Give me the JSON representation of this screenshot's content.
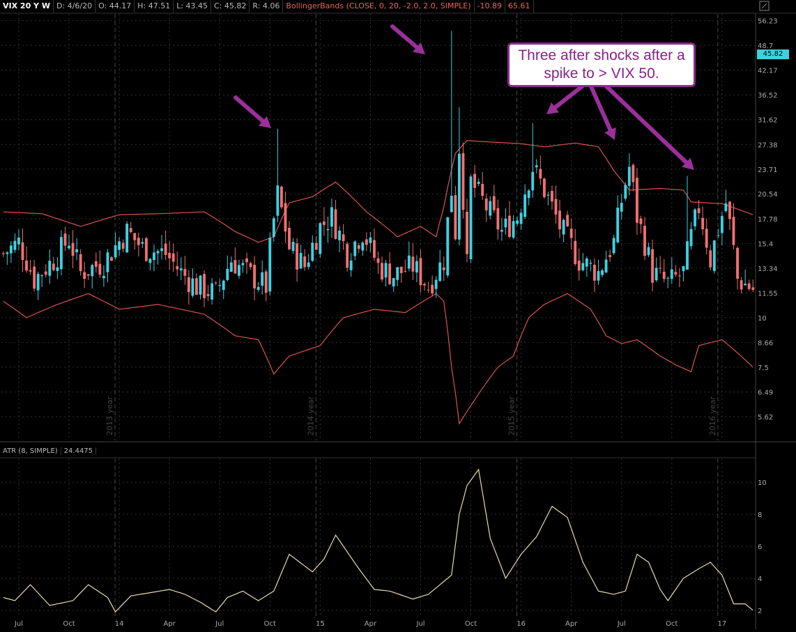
{
  "header": {
    "symbol": "VIX 20 Y W",
    "date": "D: 4/6/20",
    "open": "O: 44.17",
    "high": "H: 47.51",
    "low": "L: 43.45",
    "close": "C: 45.82",
    "range": "R: 4.06",
    "study": "BollingerBands (CLOSE, 0, 20, -2.0, 2.0, SIMPLE)",
    "study_lower": "-10.89",
    "study_upper": "65.61"
  },
  "price_tag": "45.82",
  "annotation": "Three after shocks after a spike to > VIX 50.",
  "atr_header": {
    "study": "ATR (8, SIMPLE)",
    "value": "24.4475"
  },
  "colors": {
    "up": "#3fd0e0",
    "down": "#f07070",
    "band": "#d9534f",
    "atr_line": "#e9dcae",
    "arrow": "#9b2f9b",
    "grid": "#333333"
  },
  "chart_data": [
    {
      "type": "candlestick",
      "scale": "log",
      "y_ticks": [
        56.23,
        48.7,
        42.17,
        36.52,
        31.62,
        27.38,
        23.71,
        20.54,
        17.78,
        15.4,
        13.34,
        11.55,
        10,
        8.66,
        7.5,
        6.49,
        5.62
      ],
      "y_tick_labels": [
        "56.23",
        "48.7",
        "42.17",
        "36.52",
        "31.62",
        "27.38",
        "23.71",
        "20.54",
        "17.78",
        "15.4",
        "13.34",
        "11.55",
        "10",
        "8.66",
        "7.5",
        "6.49",
        "5.62"
      ],
      "ylim": [
        4.9,
        58
      ],
      "x_labels": [
        "Jul",
        "Oct",
        "14",
        "Apr",
        "Jul",
        "Oct",
        "15",
        "Apr",
        "Jul",
        "Oct",
        "16",
        "Apr",
        "Jul",
        "Oct",
        "17"
      ],
      "x_label_index": [
        4,
        17,
        30,
        43,
        56,
        69,
        82,
        95,
        108,
        121,
        134,
        147,
        160,
        173,
        186
      ],
      "year_dividers": [
        {
          "index": 30,
          "label": "2013 year"
        },
        {
          "index": 82,
          "label": "2014 year"
        },
        {
          "index": 134,
          "label": "2015 year"
        },
        {
          "index": 186,
          "label": "2016 year"
        }
      ],
      "x_count": 195,
      "close_anchors": [
        [
          0,
          14.5
        ],
        [
          4,
          15.5
        ],
        [
          8,
          12.5
        ],
        [
          13,
          14.0
        ],
        [
          17,
          15.8
        ],
        [
          20,
          13.0
        ],
        [
          26,
          13.8
        ],
        [
          32,
          16.5
        ],
        [
          36,
          15.0
        ],
        [
          42,
          14.5
        ],
        [
          46,
          13.0
        ],
        [
          50,
          12.0
        ],
        [
          55,
          11.5
        ],
        [
          59,
          14.0
        ],
        [
          63,
          13.0
        ],
        [
          68,
          12.0
        ],
        [
          71,
          20.5
        ],
        [
          74,
          15.0
        ],
        [
          78,
          13.5
        ],
        [
          82,
          17.0
        ],
        [
          85,
          18.0
        ],
        [
          89,
          14.5
        ],
        [
          93,
          16.5
        ],
        [
          97,
          13.5
        ],
        [
          101,
          12.8
        ],
        [
          106,
          13.5
        ],
        [
          110,
          12.0
        ],
        [
          114,
          14.0
        ],
        [
          117,
          16.5
        ],
        [
          120,
          13.5
        ],
        [
          112,
          13.0
        ],
        [
          116,
          21.0
        ],
        [
          118,
          27.0
        ],
        [
          121,
          22.0
        ],
        [
          125,
          19.0
        ],
        [
          129,
          16.5
        ],
        [
          133,
          18.0
        ],
        [
          137,
          24.0
        ],
        [
          140,
          21.0
        ],
        [
          144,
          17.0
        ],
        [
          149,
          14.0
        ],
        [
          154,
          13.0
        ],
        [
          158,
          15.5
        ],
        [
          162,
          24.0
        ],
        [
          164,
          18.0
        ],
        [
          168,
          13.0
        ],
        [
          172,
          12.2
        ],
        [
          176,
          13.0
        ],
        [
          180,
          19.0
        ],
        [
          183,
          14.0
        ],
        [
          187,
          19.5
        ],
        [
          190,
          12.5
        ],
        [
          194,
          11.8
        ]
      ],
      "spike_highs": [
        [
          71,
          30.0
        ],
        [
          116,
          53.0
        ],
        [
          118,
          34.0
        ],
        [
          137,
          31.0
        ],
        [
          162,
          26.0
        ],
        [
          177,
          22.8
        ]
      ]
    },
    {
      "type": "line",
      "name": "BollingerBands",
      "upper_anchors": [
        [
          0,
          18.5
        ],
        [
          10,
          18.3
        ],
        [
          20,
          17.0
        ],
        [
          30,
          18.2
        ],
        [
          40,
          18.3
        ],
        [
          52,
          18.5
        ],
        [
          60,
          16.5
        ],
        [
          66,
          15.5
        ],
        [
          70,
          16.0
        ],
        [
          74,
          19.5
        ],
        [
          80,
          20.2
        ],
        [
          86,
          22.0
        ],
        [
          94,
          18.5
        ],
        [
          102,
          16.0
        ],
        [
          108,
          17.0
        ],
        [
          112,
          16.0
        ],
        [
          114,
          19.0
        ],
        [
          117,
          26.0
        ],
        [
          120,
          28.0
        ],
        [
          128,
          27.7
        ],
        [
          134,
          27.5
        ],
        [
          140,
          27.0
        ],
        [
          148,
          27.6
        ],
        [
          154,
          27.0
        ],
        [
          158,
          23.5
        ],
        [
          162,
          21.0
        ],
        [
          170,
          21.2
        ],
        [
          176,
          21.0
        ],
        [
          178,
          19.6
        ],
        [
          186,
          19.4
        ],
        [
          194,
          18.2
        ]
      ],
      "lower_anchors": [
        [
          0,
          11.0
        ],
        [
          6,
          10.0
        ],
        [
          14,
          10.8
        ],
        [
          22,
          11.5
        ],
        [
          30,
          10.5
        ],
        [
          40,
          10.8
        ],
        [
          52,
          10.2
        ],
        [
          60,
          9.0
        ],
        [
          66,
          8.8
        ],
        [
          70,
          7.2
        ],
        [
          74,
          8.0
        ],
        [
          82,
          8.5
        ],
        [
          88,
          10.0
        ],
        [
          96,
          10.5
        ],
        [
          104,
          10.3
        ],
        [
          112,
          11.5
        ],
        [
          114,
          11.0
        ],
        [
          116,
          7.5
        ],
        [
          118,
          5.4
        ],
        [
          122,
          6.2
        ],
        [
          128,
          7.5
        ],
        [
          132,
          8.0
        ],
        [
          136,
          10.0
        ],
        [
          140,
          10.8
        ],
        [
          146,
          11.5
        ],
        [
          152,
          10.5
        ],
        [
          156,
          9.0
        ],
        [
          160,
          8.6
        ],
        [
          164,
          8.8
        ],
        [
          170,
          8.0
        ],
        [
          174,
          7.6
        ],
        [
          178,
          7.3
        ],
        [
          180,
          8.5
        ],
        [
          186,
          8.8
        ],
        [
          194,
          7.5
        ]
      ]
    },
    {
      "type": "line",
      "name": "ATR (8, SIMPLE)",
      "y_ticks": [
        10,
        8,
        6,
        4,
        2
      ],
      "y_tick_labels": [
        "10",
        "8",
        "6",
        "4",
        "2"
      ],
      "ylim": [
        1.6,
        11.4
      ],
      "anchors": [
        [
          0,
          2.8
        ],
        [
          3,
          2.6
        ],
        [
          7,
          3.6
        ],
        [
          12,
          2.3
        ],
        [
          18,
          2.6
        ],
        [
          22,
          3.6
        ],
        [
          27,
          2.8
        ],
        [
          29,
          1.9
        ],
        [
          33,
          2.9
        ],
        [
          38,
          3.1
        ],
        [
          43,
          3.3
        ],
        [
          47,
          3.0
        ],
        [
          51,
          2.5
        ],
        [
          55,
          1.9
        ],
        [
          58,
          2.8
        ],
        [
          62,
          3.2
        ],
        [
          66,
          2.6
        ],
        [
          70,
          3.2
        ],
        [
          74,
          5.5
        ],
        [
          80,
          4.4
        ],
        [
          83,
          5.2
        ],
        [
          86,
          6.7
        ],
        [
          92,
          4.6
        ],
        [
          96,
          3.3
        ],
        [
          100,
          3.2
        ],
        [
          106,
          2.7
        ],
        [
          110,
          3.0
        ],
        [
          114,
          3.8
        ],
        [
          116,
          4.2
        ],
        [
          118,
          8.0
        ],
        [
          120,
          9.8
        ],
        [
          123,
          10.8
        ],
        [
          126,
          6.5
        ],
        [
          130,
          4.0
        ],
        [
          134,
          5.5
        ],
        [
          138,
          6.6
        ],
        [
          142,
          8.5
        ],
        [
          146,
          7.8
        ],
        [
          150,
          5.0
        ],
        [
          154,
          3.2
        ],
        [
          158,
          3.0
        ],
        [
          161,
          3.2
        ],
        [
          164,
          5.5
        ],
        [
          167,
          5.0
        ],
        [
          170,
          3.3
        ],
        [
          172,
          2.6
        ],
        [
          176,
          4.0
        ],
        [
          180,
          4.6
        ],
        [
          183,
          5.0
        ],
        [
          186,
          4.2
        ],
        [
          189,
          2.4
        ],
        [
          192,
          2.4
        ],
        [
          194,
          2.0
        ]
      ]
    }
  ]
}
